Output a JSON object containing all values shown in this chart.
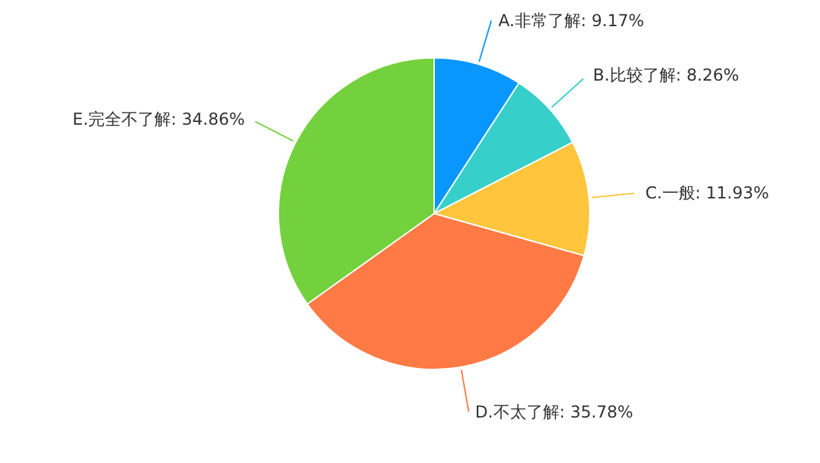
{
  "chart_data": {
    "type": "pie",
    "categories": [
      "A.非常了解",
      "B.比较了解",
      "C.一般",
      "D.不太了解",
      "E.完全不了解"
    ],
    "values": [
      9.17,
      8.26,
      11.93,
      35.78,
      34.86
    ],
    "value_labels": [
      "9.17%",
      "8.26%",
      "11.93%",
      "35.78%",
      "34.86%"
    ],
    "colors": [
      "#0a96ff",
      "#36cfc9",
      "#ffc53d",
      "#ff7a45",
      "#73d13d"
    ]
  }
}
